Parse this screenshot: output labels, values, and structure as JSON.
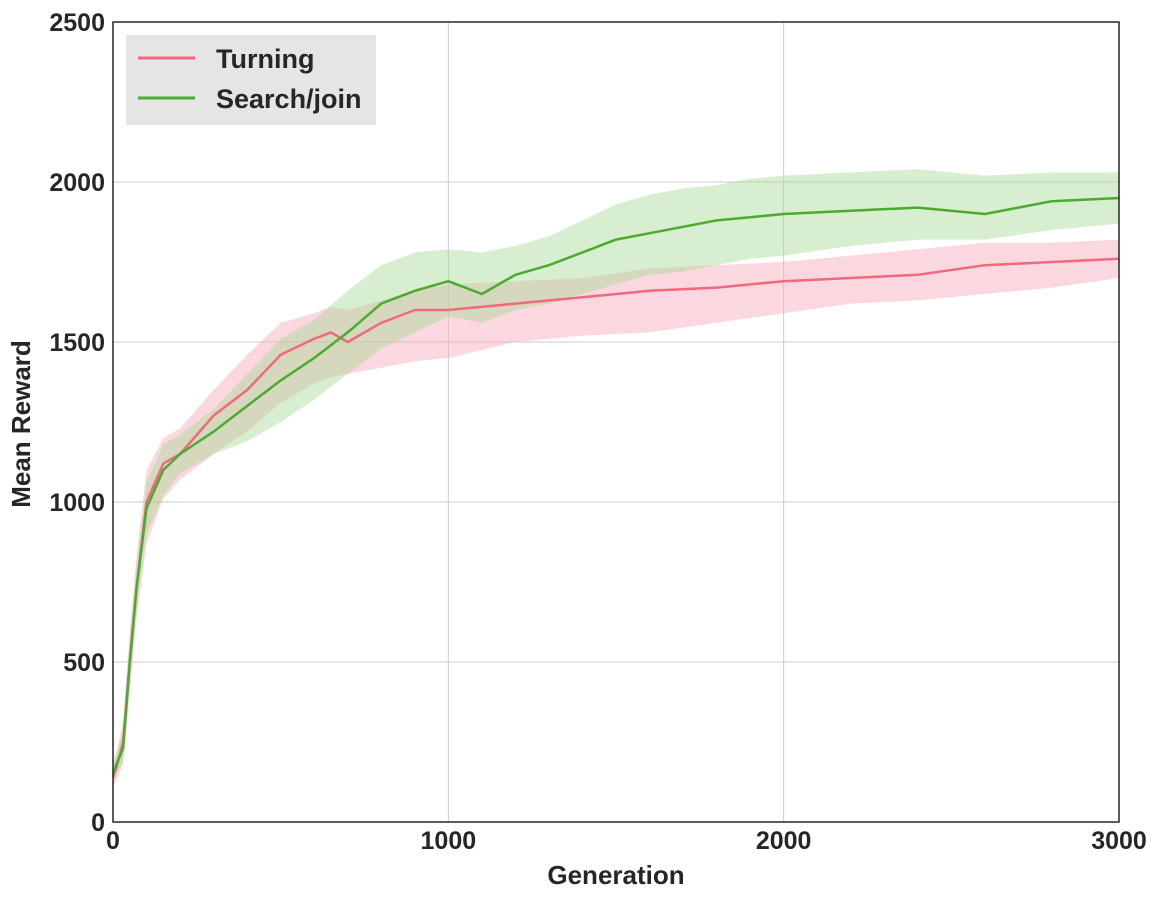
{
  "chart_data": {
    "type": "line",
    "title": "",
    "xlabel": "Generation",
    "ylabel": "Mean Reward",
    "xlim": [
      0,
      3000
    ],
    "ylim": [
      0,
      2500
    ],
    "xticks": [
      0,
      1000,
      2000,
      3000
    ],
    "yticks": [
      0,
      500,
      1000,
      1500,
      2000,
      2500
    ],
    "xtick_labels": [
      "0",
      "1000",
      "2000",
      "3000"
    ],
    "ytick_labels": [
      "0",
      "500",
      "1000",
      "1500",
      "2000",
      "2500"
    ],
    "grid": true,
    "legend_position": "top-left",
    "series": [
      {
        "name": "Turning",
        "color": "#f0697e",
        "band_color": "#f7a8b8",
        "x": [
          0,
          10,
          30,
          50,
          70,
          100,
          150,
          200,
          300,
          400,
          500,
          600,
          650,
          700,
          800,
          900,
          1000,
          1200,
          1400,
          1600,
          1800,
          2000,
          2200,
          2400,
          2600,
          2800,
          3000
        ],
        "y": [
          140,
          170,
          250,
          500,
          730,
          1000,
          1120,
          1150,
          1270,
          1350,
          1460,
          1510,
          1530,
          1500,
          1560,
          1600,
          1600,
          1620,
          1640,
          1660,
          1670,
          1690,
          1700,
          1710,
          1740,
          1750,
          1760
        ],
        "lower": [
          110,
          130,
          180,
          400,
          630,
          870,
          1010,
          1070,
          1150,
          1220,
          1310,
          1370,
          1390,
          1400,
          1420,
          1440,
          1450,
          1500,
          1520,
          1530,
          1560,
          1590,
          1620,
          1630,
          1650,
          1670,
          1700
        ],
        "upper": [
          180,
          210,
          320,
          600,
          830,
          1100,
          1200,
          1230,
          1350,
          1460,
          1560,
          1590,
          1610,
          1600,
          1630,
          1660,
          1680,
          1690,
          1700,
          1730,
          1740,
          1750,
          1770,
          1790,
          1810,
          1810,
          1820
        ]
      },
      {
        "name": "Search/join",
        "color": "#4aab2e",
        "band_color": "#a8d996",
        "x": [
          0,
          10,
          30,
          50,
          70,
          100,
          150,
          200,
          300,
          400,
          500,
          600,
          700,
          800,
          900,
          1000,
          1100,
          1200,
          1300,
          1400,
          1500,
          1600,
          1700,
          1800,
          1900,
          2000,
          2200,
          2400,
          2600,
          2800,
          3000
        ],
        "y": [
          150,
          180,
          230,
          500,
          730,
          980,
          1100,
          1150,
          1220,
          1300,
          1380,
          1450,
          1530,
          1620,
          1660,
          1690,
          1650,
          1710,
          1740,
          1780,
          1820,
          1840,
          1860,
          1880,
          1890,
          1900,
          1910,
          1920,
          1900,
          1940,
          1950
        ],
        "lower": [
          120,
          150,
          190,
          430,
          660,
          900,
          1020,
          1090,
          1150,
          1190,
          1250,
          1320,
          1400,
          1480,
          1530,
          1580,
          1560,
          1600,
          1620,
          1650,
          1680,
          1710,
          1720,
          1740,
          1760,
          1770,
          1800,
          1820,
          1820,
          1850,
          1870
        ],
        "upper": [
          190,
          220,
          280,
          570,
          800,
          1060,
          1180,
          1210,
          1290,
          1400,
          1510,
          1570,
          1660,
          1740,
          1780,
          1790,
          1780,
          1800,
          1830,
          1880,
          1930,
          1960,
          1980,
          1990,
          2010,
          2020,
          2030,
          2040,
          2020,
          2030,
          2030
        ]
      }
    ]
  }
}
